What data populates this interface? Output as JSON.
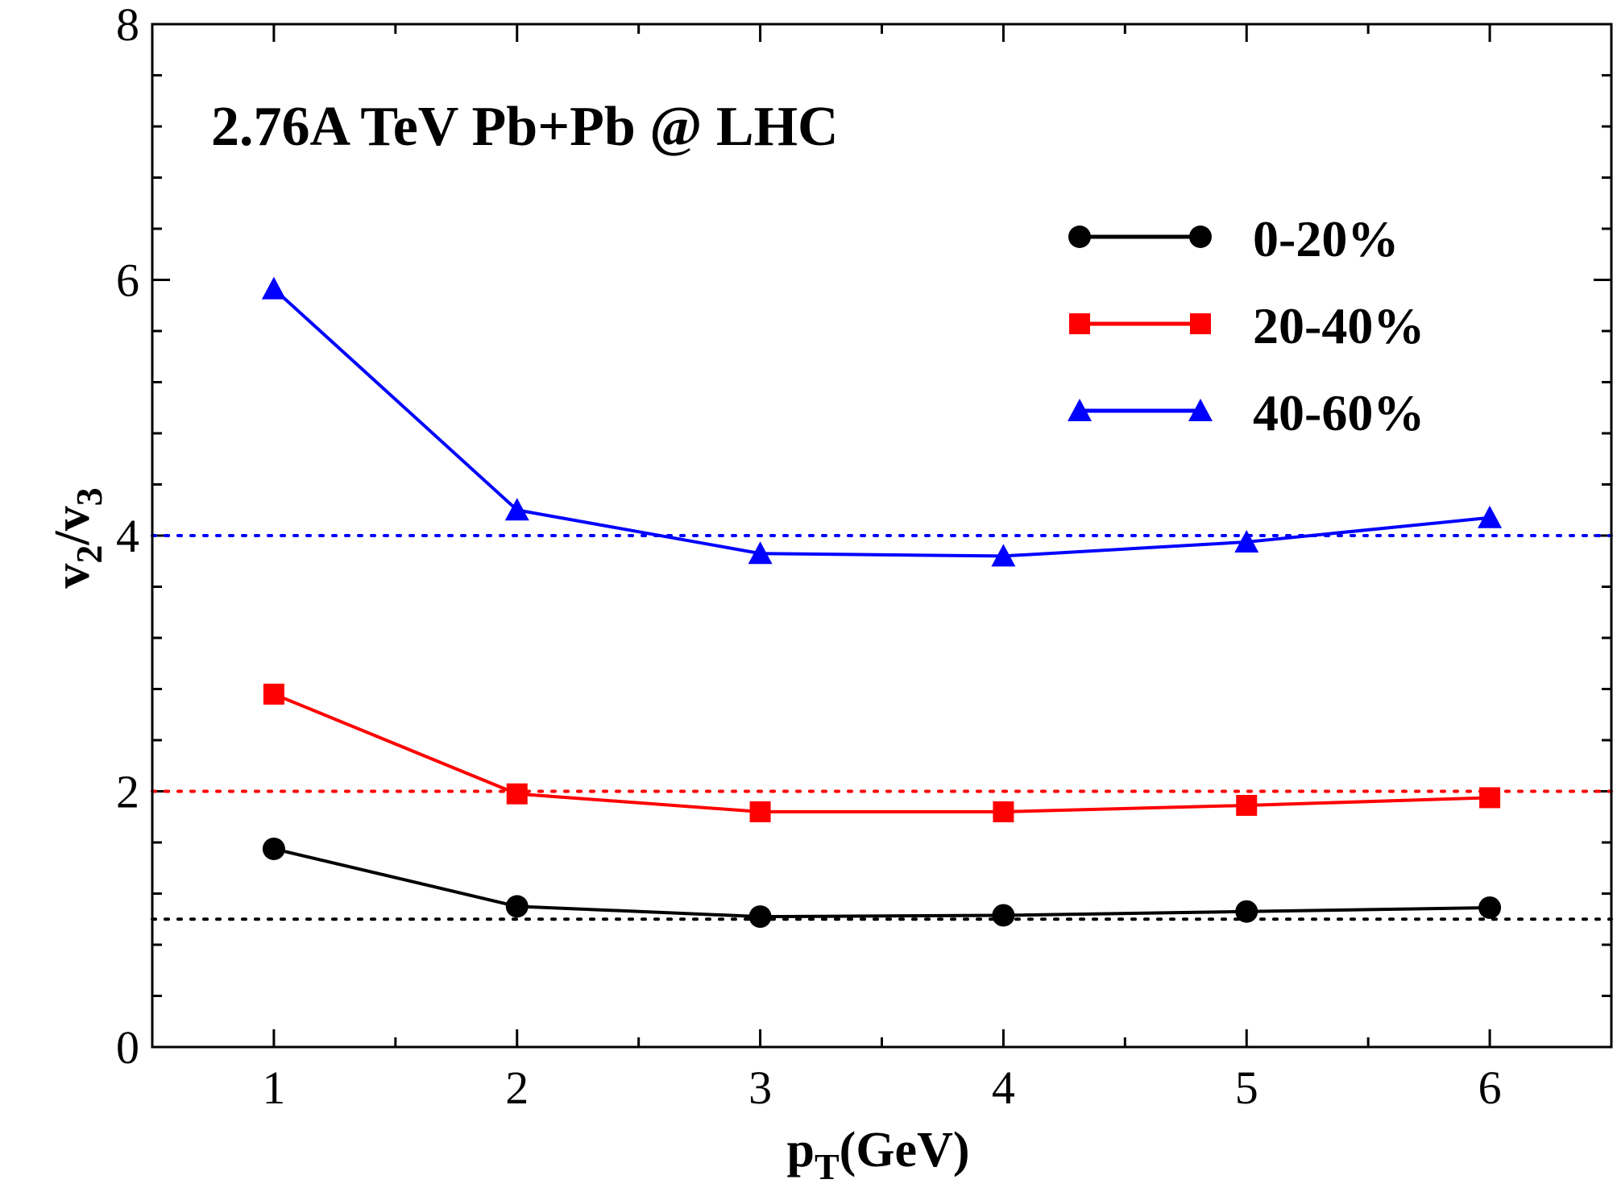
{
  "chart_data": {
    "type": "line",
    "annotation": "2.76A TeV Pb+Pb @ LHC",
    "xlabel": {
      "main": "p",
      "sub": "T",
      "suffix": "(GeV)"
    },
    "ylabel": {
      "a": "v",
      "a_sub": "2",
      "slash": "/",
      "b": "v",
      "b_sub": "3"
    },
    "xlim": [
      0.5,
      6.5
    ],
    "ylim": [
      0,
      8
    ],
    "x_ticks": [
      "1",
      "2",
      "3",
      "4",
      "5",
      "6"
    ],
    "y_ticks": [
      "0",
      "2",
      "4",
      "6",
      "8"
    ],
    "x": [
      1,
      2,
      3,
      4,
      5,
      6
    ],
    "series": [
      {
        "name": "0-20%",
        "color": "#000000",
        "marker": "circle",
        "values": [
          1.55,
          1.1,
          1.02,
          1.03,
          1.06,
          1.09
        ]
      },
      {
        "name": "20-40%",
        "color": "#ff0000",
        "marker": "square",
        "values": [
          2.76,
          1.98,
          1.84,
          1.84,
          1.89,
          1.95
        ]
      },
      {
        "name": "40-60%",
        "color": "#0000ff",
        "marker": "triangle",
        "values": [
          5.93,
          4.2,
          3.86,
          3.84,
          3.95,
          4.14
        ]
      }
    ],
    "reference_lines": [
      {
        "y": 1,
        "color": "#000000",
        "style": "dotted"
      },
      {
        "y": 2,
        "color": "#ff0000",
        "style": "dotted"
      },
      {
        "y": 4,
        "color": "#0000ff",
        "style": "dotted"
      }
    ],
    "legend_position": "top-right"
  }
}
